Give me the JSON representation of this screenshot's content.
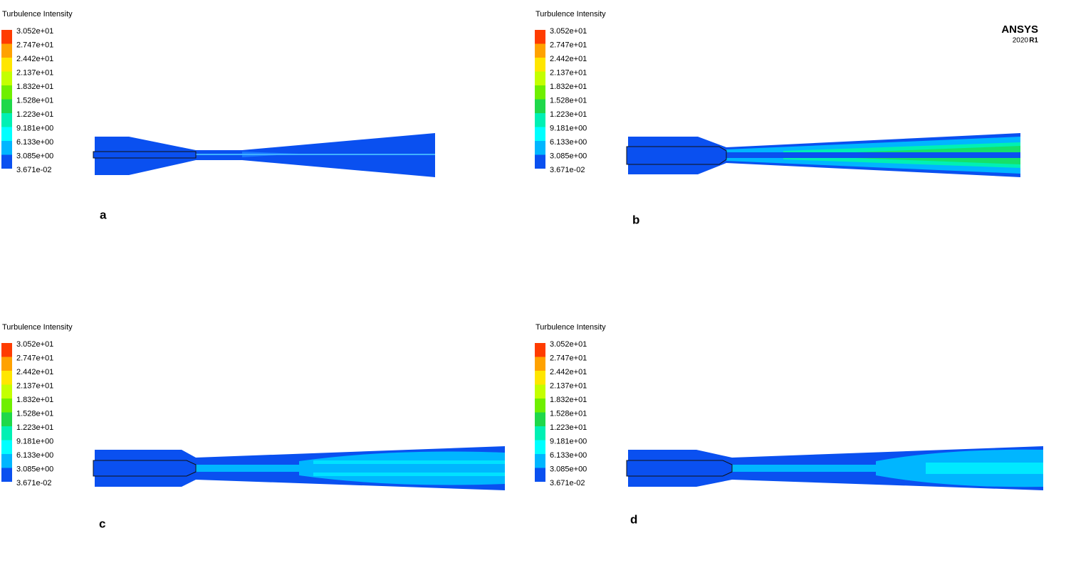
{
  "logo": {
    "name": "ANSYS",
    "version": "2020",
    "release": "R1"
  },
  "colorbar_colors": [
    "#ff3c00",
    "#ffa200",
    "#ffe600",
    "#c4ff00",
    "#6fef00",
    "#1fd84a",
    "#00f0b4",
    "#00ffff",
    "#00b6ff",
    "#0a50f0"
  ],
  "panels": [
    {
      "label": "a",
      "legend": {
        "title": "Turbulence Intensity",
        "ticks": [
          "3.052e+01",
          "2.747e+01",
          "2.442e+01",
          "2.137e+01",
          "1.832e+01",
          "1.528e+01",
          "1.223e+01",
          "9.181e+00",
          "6.133e+00",
          "3.085e+00",
          "3.671e-02"
        ]
      }
    },
    {
      "label": "b",
      "legend": {
        "title": "Turbulence Intensity",
        "ticks": [
          "3.052e+01",
          "2.747e+01",
          "2.442e+01",
          "2.137e+01",
          "1.832e+01",
          "1.528e+01",
          "1.223e+01",
          "9.181e+00",
          "6.133e+00",
          "3.085e+00",
          "3.671e-02"
        ]
      }
    },
    {
      "label": "c",
      "legend": {
        "title": "Turbulence Intensity",
        "ticks": [
          "3.052e+01",
          "2.747e+01",
          "2.442e+01",
          "2.137e+01",
          "1.832e+01",
          "1.528e+01",
          "1.223e+01",
          "9.181e+00",
          "6.133e+00",
          "3.085e+00",
          "3.671e-02"
        ]
      }
    },
    {
      "label": "d",
      "legend": {
        "title": "Turbulence Intensity",
        "ticks": [
          "3.052e+01",
          "2.747e+01",
          "2.442e+01",
          "2.137e+01",
          "1.832e+01",
          "1.528e+01",
          "1.223e+01",
          "9.181e+00",
          "6.133e+00",
          "3.085e+00",
          "3.671e-02"
        ]
      }
    }
  ]
}
